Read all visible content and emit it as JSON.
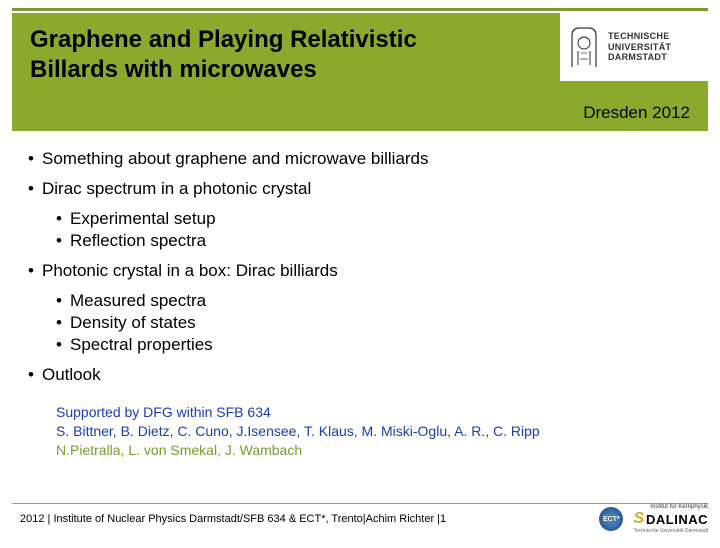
{
  "header": {
    "title": "Graphene and Playing Relativistic Billards with microwaves",
    "subtitle": "Dresden 2012",
    "logo": {
      "line1": "TECHNISCHE",
      "line2": "UNIVERSITÄT",
      "line3": "DARMSTADT"
    },
    "accent_color": "#8aaa2e",
    "line_color": "#7a9a2e"
  },
  "bullets": [
    {
      "text": "Something about graphene and microwave billiards",
      "subs": []
    },
    {
      "text": "Dirac spectrum in a photonic crystal",
      "subs": [
        "Experimental setup",
        "Reflection spectra"
      ]
    },
    {
      "text": "Photonic crystal in a box: Dirac billiards",
      "subs": [
        "Measured spectra",
        "Density of states",
        "Spectral properties"
      ]
    },
    {
      "text": "Outlook",
      "subs": []
    }
  ],
  "support": {
    "line1": "Supported by DFG within SFB 634",
    "line2": "S. Bittner, B. Dietz, C. Cuno, J.Isensee, T. Klaus, M. Miski-Oglu, A. R., C. Ripp",
    "line3": "N.Pietralla, L. von Smekal, J. Wambach",
    "color_blue": "#1a3db5",
    "color_green": "#7a9a2e"
  },
  "footer": {
    "text": "2012 | Institute of Nuclear Physics Darmstadt/SFB 634 & ECT*, Trento|Achim Richter |1",
    "ect_label": "ECT*",
    "dalinac_top": "Institut für Kernphysik",
    "dalinac_s": "S",
    "dalinac_text": "DALINAC",
    "dalinac_sub": "Technische Universität Darmstadt"
  }
}
